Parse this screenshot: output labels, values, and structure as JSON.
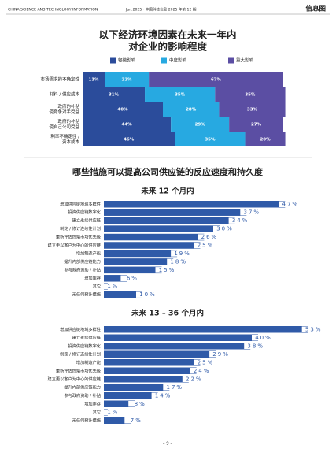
{
  "header": {
    "left": "CHINA SCIENCE AND TECHNOLOGY INFORMATION",
    "issue": "Jun.2025 · 中国科技信息 2025 年第 12 期",
    "section": "信息图"
  },
  "section_title": "哪些措施可以提高公司供应链的反应速度和持久度",
  "page_number": "– 9 –",
  "chart_data": [
    {
      "type": "stacked_bar",
      "title": [
        "以下经济环境因素在未来一年内",
        "对企业的影响程度"
      ],
      "categories": [
        [
          "市场需求的不确定性"
        ],
        [
          "材料 / 供应成本"
        ],
        [
          "政府的补贴",
          "使竞争对手受益"
        ],
        [
          "政府的补贴",
          "使自己公司受益"
        ],
        [
          "利率不确定性 /",
          "资本成本"
        ]
      ],
      "series": [
        {
          "name": "轻微影响",
          "color": "#2b4c9b",
          "values": [
            11,
            31,
            40,
            44,
            46
          ],
          "value_labels": [
            "11%",
            "31%",
            "40%",
            "44%",
            "46%"
          ]
        },
        {
          "name": "中度影响",
          "color": "#27a9e1",
          "values": [
            22,
            35,
            28,
            29,
            35
          ],
          "value_labels": [
            "22%",
            "35%",
            "28%",
            "29%",
            "35%"
          ]
        },
        {
          "name": "重大影响",
          "color": "#5b4ea3",
          "values": [
            67,
            35,
            33,
            27,
            20
          ],
          "value_labels": [
            "67%",
            "35%",
            "33%",
            "27%",
            "20%"
          ]
        }
      ]
    },
    {
      "type": "bar",
      "title": "未来 12 个月内",
      "color": "#2f5aa8",
      "categories": [
        "增加供应链地域多样性",
        "投资供应链数字化",
        "建立永续供应链",
        "制定 / 修订连续性计划",
        "重新评估终端市场优先级",
        "建立更以客户为中心的供应链",
        "增加制造产能",
        "提升内部供应链能力",
        "参与政府资助 / 补贴",
        "增加库存",
        "其它",
        "无任何预计措施"
      ],
      "values": [
        47,
        37,
        34,
        30,
        26,
        25,
        19,
        18,
        15,
        6,
        1,
        10
      ],
      "value_labels": [
        "47%",
        "37%",
        "34%",
        "30%",
        "26%",
        "25%",
        "19%",
        "18%",
        "15%",
        "6%",
        "1%",
        "10%"
      ]
    },
    {
      "type": "bar",
      "title": "未来 13 – 36 个月内",
      "color": "#2f5aa8",
      "categories": [
        "增加供应链地域多样性",
        "建立永续供应链",
        "投资供应链数字化",
        "制定 / 修订连续性计划",
        "增加制造产能",
        "重新评估终端市场优先级",
        "建立更以客户为中心的供应链",
        "提升内部供应链能力",
        "参与政府资助 / 补贴",
        "增加库存",
        "其它",
        "无任何预计措施"
      ],
      "values": [
        53,
        40,
        38,
        29,
        25,
        24,
        22,
        17,
        14,
        8,
        1,
        7
      ],
      "value_labels": [
        "53%",
        "40%",
        "38%",
        "29%",
        "25%",
        "24%",
        "22%",
        "17%",
        "14%",
        "8%",
        "1%",
        "7%"
      ]
    }
  ]
}
